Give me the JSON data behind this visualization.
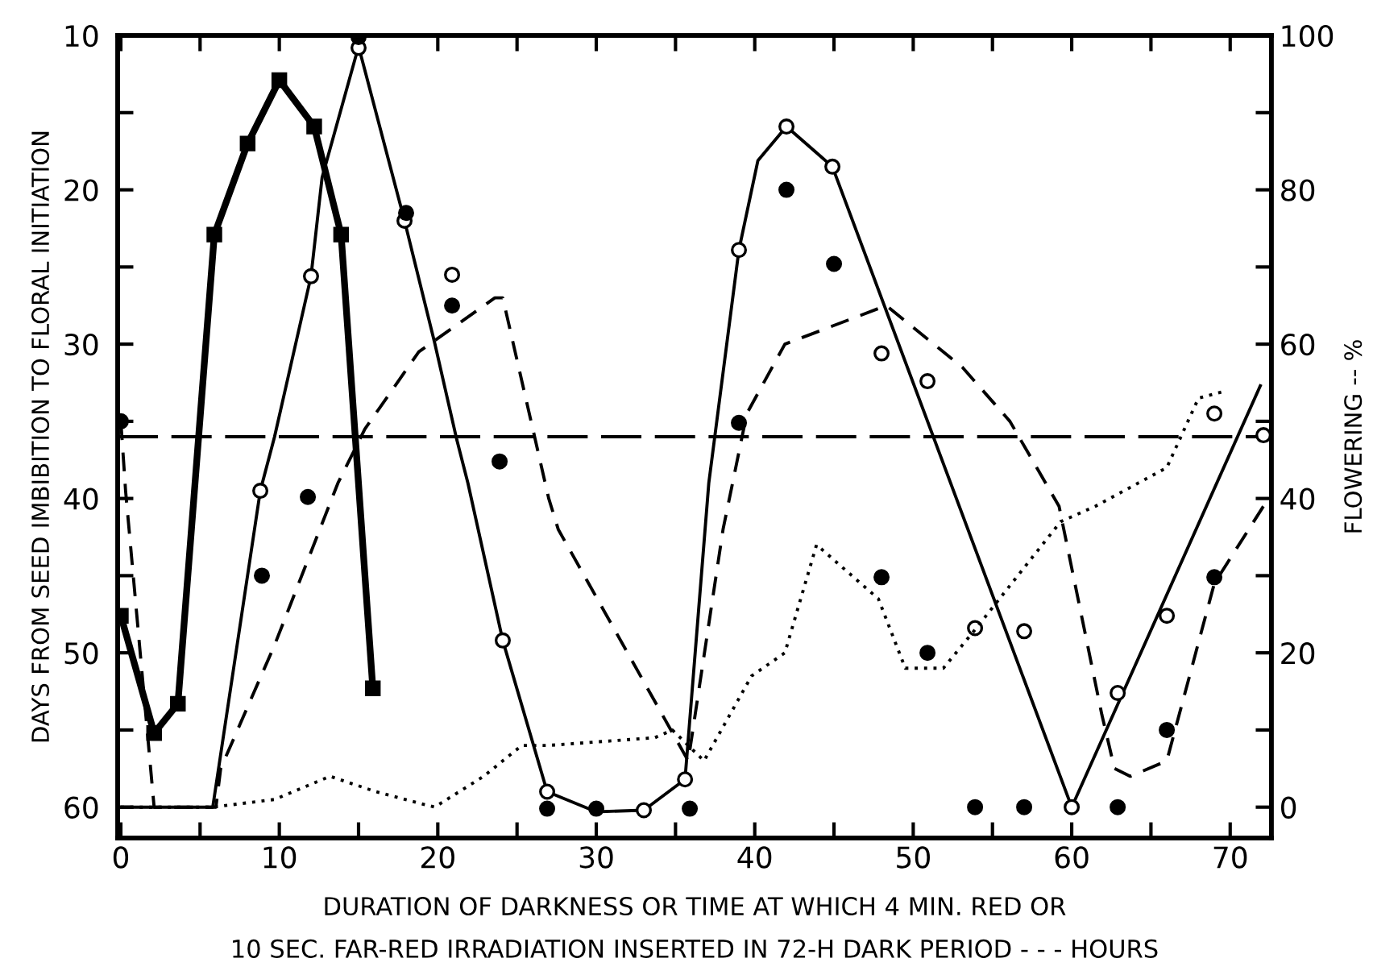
{
  "chart_data": {
    "type": "line",
    "xlabel": "DURATION OF DARKNESS OR TIME AT WHICH 4 MIN. RED OR\n10 SEC. FAR-RED IRRADIATION INSERTED IN 72-H DARK PERIOD - - - HOURS",
    "ylabel": "DAYS FROM SEED IMBIBITION TO FLORAL INITIATION",
    "y2label": "FLOWERING -- %",
    "xlim": [
      -0.2,
      72.6
    ],
    "xticks": [
      0,
      {
        "value": 5,
        "label": null
      },
      10,
      {
        "value": 15,
        "label": null
      },
      20,
      {
        "value": 25,
        "label": null
      },
      30,
      {
        "value": 35,
        "label": null
      },
      40,
      {
        "value": 45,
        "label": null
      },
      50,
      {
        "value": 55,
        "label": null
      },
      60,
      {
        "value": 65,
        "label": null
      },
      70
    ],
    "ylim": [
      62,
      10
    ],
    "yticks": [
      10,
      {
        "value": 15,
        "label": null
      },
      20,
      {
        "value": 25,
        "label": null
      },
      30,
      {
        "value": 35,
        "label": null
      },
      40,
      {
        "value": 45,
        "label": null
      },
      50,
      {
        "value": 55,
        "label": null
      },
      60
    ],
    "y2lim": [
      -4,
      100
    ],
    "y2ticks": [
      0,
      {
        "value": 10,
        "label": null
      },
      20,
      {
        "value": 30,
        "label": null
      },
      40,
      {
        "value": 50,
        "label": null
      },
      60,
      {
        "value": 70,
        "label": null
      },
      80,
      {
        "value": 90,
        "label": null
      },
      100
    ],
    "grid": false,
    "legend": false,
    "ref_lines": [
      {
        "axis": "y",
        "value": 36,
        "label": null,
        "color": "#000000",
        "line_style": "dashed"
      }
    ],
    "series": [
      {
        "color": "#000000",
        "marker": "square",
        "line_style": "solid",
        "x": [
          0,
          2.1,
          3.6,
          5.9,
          8.0,
          10.0,
          12.2,
          13.9,
          15.9
        ],
        "values": [
          47.6,
          55.2,
          53.3,
          22.9,
          17.0,
          12.9,
          15.9,
          22.9,
          52.3
        ]
      },
      {
        "color": "#000000",
        "marker": "none",
        "line_style": "solid",
        "x": [
          0,
          2.5,
          5.8,
          8.8,
          9.7,
          12.0,
          12.7,
          15.0,
          17.9,
          19.8,
          21.2,
          21.9,
          24.1,
          26.9,
          30.0,
          33.0,
          35.6,
          37.1,
          39.0,
          40.2,
          42.0,
          44.9,
          60.0,
          71.9
        ],
        "values": [
          60,
          60,
          60,
          39.5,
          36,
          25.6,
          19.2,
          10.7,
          22.0,
          29.9,
          36.2,
          39,
          49.2,
          59.0,
          60.3,
          60.2,
          58.2,
          39,
          23.9,
          18.1,
          15.9,
          18.5,
          60,
          32.7
        ]
      },
      {
        "axis": "y2",
        "color": "#000000",
        "marker": "none",
        "line_style": "dashed",
        "x": [
          0,
          0.3,
          2.1,
          6.0,
          6.3,
          9.7,
          13.7,
          15.4,
          18.8,
          23.6,
          24.1,
          27.0,
          27.6,
          35.8,
          38.0,
          39.5,
          41.9,
          48.3,
          53.1,
          56.1,
          59.2,
          61.9,
          62.7,
          63.7,
          66.0,
          69.0,
          72.1
        ],
        "values": [
          50,
          41,
          0,
          0,
          5,
          21,
          42,
          49,
          59,
          66,
          66,
          40,
          36,
          6,
          36,
          51,
          60,
          65,
          57,
          50,
          39,
          12,
          5,
          4,
          6,
          29,
          39
        ]
      },
      {
        "axis": "y2",
        "color": "#000000",
        "marker": "none",
        "line_style": "dotted",
        "x": [
          0,
          5.8,
          9.7,
          13.2,
          16.1,
          19.8,
          22.9,
          25.3,
          27.0,
          33.7,
          34.8,
          36.8,
          39.8,
          41.9,
          43.9,
          47.8,
          49.5,
          51.9,
          53.9,
          59.3,
          61.5,
          66.0,
          68.0,
          69.8
        ],
        "values": [
          0,
          0,
          1,
          4,
          2,
          0,
          4,
          8,
          8,
          9,
          10,
          6,
          17,
          20,
          34,
          27,
          18,
          18,
          23,
          37,
          39,
          44,
          53,
          54
        ]
      },
      {
        "type": "scatter",
        "color": "#ffffff",
        "marker": "circle",
        "x": [
          8.8,
          12.0,
          15.0,
          17.9,
          20.9,
          24.1,
          26.9,
          33.0,
          35.6,
          39.0,
          42.0,
          44.9,
          48.0,
          50.9,
          53.9,
          57.0,
          60.0,
          62.9,
          66.0,
          69.0,
          72.1
        ],
        "values": [
          39.5,
          25.6,
          10.8,
          22.0,
          25.5,
          49.2,
          59.0,
          60.2,
          58.2,
          23.9,
          15.9,
          18.5,
          30.6,
          32.4,
          48.4,
          48.6,
          60,
          52.6,
          47.6,
          34.5,
          35.9
        ]
      },
      {
        "type": "scatter",
        "color": "#000000",
        "marker": "circle",
        "x": [
          0,
          8.9,
          11.8,
          15.0,
          18.0,
          20.9,
          23.9,
          26.9,
          30.0,
          35.9,
          39.0,
          42.0,
          45.0,
          48.0,
          50.9,
          53.9,
          57.0,
          62.9,
          66.0,
          69.0
        ],
        "values": [
          35.0,
          45.0,
          39.9,
          10.1,
          21.5,
          27.5,
          37.6,
          60.1,
          60.1,
          60.1,
          35.1,
          20.0,
          24.8,
          45.1,
          50.0,
          60,
          60,
          60,
          55.0,
          45.1
        ]
      }
    ]
  }
}
